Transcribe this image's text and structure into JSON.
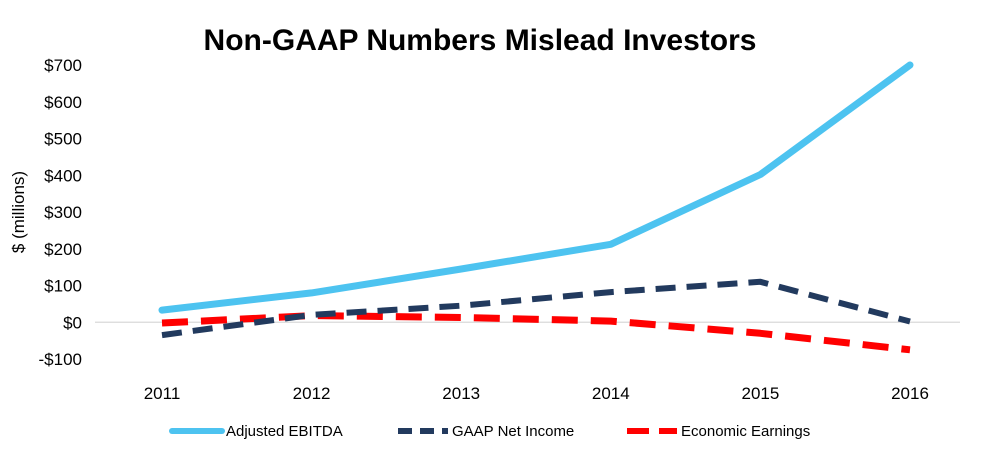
{
  "chart_data": {
    "type": "line",
    "title": "Non-GAAP Numbers Mislead Investors",
    "xlabel": "",
    "ylabel": "$ (millions)",
    "categories": [
      "2011",
      "2012",
      "2013",
      "2014",
      "2015",
      "2016"
    ],
    "ylim": [
      -100,
      700
    ],
    "yticks": [
      -100,
      0,
      100,
      200,
      300,
      400,
      500,
      600,
      700
    ],
    "ytick_labels": [
      "-$100",
      "$0",
      "$100",
      "$200",
      "$300",
      "$400",
      "$500",
      "$600",
      "$700"
    ],
    "grid": false,
    "legend_position": "bottom",
    "series": [
      {
        "name": "Adjusted EBITDA",
        "values": [
          33,
          80,
          145,
          212,
          402,
          700
        ],
        "color": "#4DC3F0",
        "dash": "solid"
      },
      {
        "name": "GAAP Net Income",
        "values": [
          -35,
          20,
          45,
          82,
          110,
          2
        ],
        "color": "#223A5E",
        "dash": "dashed"
      },
      {
        "name": "Economic Earnings",
        "values": [
          -2,
          18,
          13,
          3,
          -30,
          -75
        ],
        "color": "#FF0000",
        "dash": "dashed"
      }
    ]
  }
}
